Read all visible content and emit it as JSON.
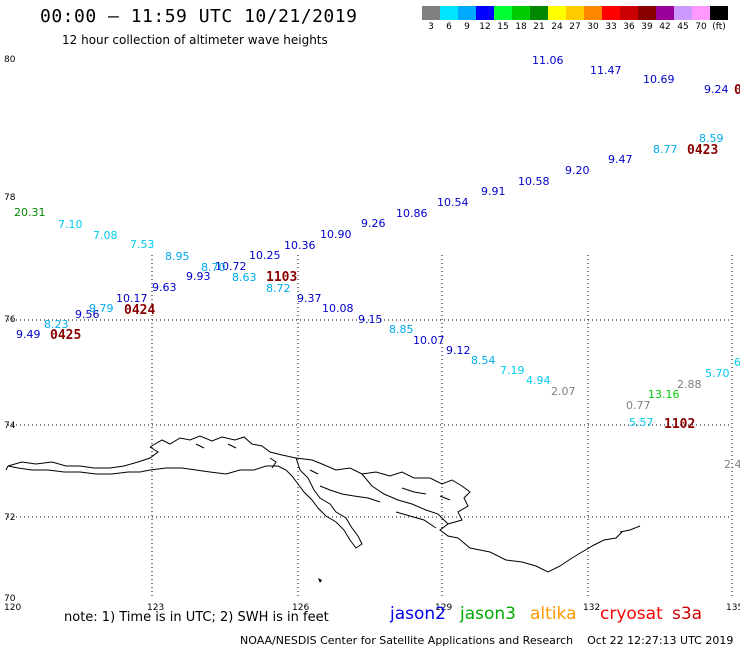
{
  "header": {
    "title": "00:00 – 11:59 UTC 10/21/2019",
    "subtitle": "12 hour collection of altimeter wave heights"
  },
  "color_scale": {
    "unit": "(ft)",
    "bins": [
      {
        "label": "3",
        "color": "#7f7f7f"
      },
      {
        "label": "6",
        "color": "#00e5ff"
      },
      {
        "label": "9",
        "color": "#00aaff"
      },
      {
        "label": "12",
        "color": "#0000ff"
      },
      {
        "label": "15",
        "color": "#00ff33"
      },
      {
        "label": "18",
        "color": "#00cc00"
      },
      {
        "label": "21",
        "color": "#008800"
      },
      {
        "label": "24",
        "color": "#ffff00"
      },
      {
        "label": "27",
        "color": "#ffcc00"
      },
      {
        "label": "30",
        "color": "#ff8800"
      },
      {
        "label": "33",
        "color": "#ff0000"
      },
      {
        "label": "36",
        "color": "#cc0000"
      },
      {
        "label": "39",
        "color": "#880000"
      },
      {
        "label": "42",
        "color": "#990099"
      },
      {
        "label": "45",
        "color": "#cc99ff"
      },
      {
        "label": "70",
        "color": "#ff99ff"
      },
      {
        "label": "",
        "color": "#000000"
      }
    ]
  },
  "axes": {
    "lon_ticks": [
      "120",
      "123",
      "126",
      "129",
      "132",
      "135"
    ],
    "lat_ticks": [
      "80",
      "78",
      "76",
      "74",
      "72",
      "70"
    ]
  },
  "observations": [
    {
      "text": "11.06",
      "lon": 128.0,
      "lat": 80.0,
      "color": "#0000cc"
    },
    {
      "text": "11.47",
      "lon": 129.2,
      "lat": 79.8,
      "color": "#0000cc"
    },
    {
      "text": "10.69",
      "lon": 130.3,
      "lat": 79.6,
      "color": "#0000cc"
    },
    {
      "text": "9.24",
      "lon": 131.4,
      "lat": 79.4,
      "color": "#0000cc"
    },
    {
      "text": "8.59",
      "lon": 131.4,
      "lat": 78.7,
      "color": "#00aaee"
    },
    {
      "text": "8.77",
      "lon": 130.4,
      "lat": 78.6,
      "color": "#00aaee"
    },
    {
      "text": "9.47",
      "lon": 129.3,
      "lat": 78.4,
      "color": "#0000cc"
    },
    {
      "text": "9.20",
      "lon": 128.3,
      "lat": 78.25,
      "color": "#0000cc"
    },
    {
      "text": "10.58",
      "lon": 127.2,
      "lat": 78.0,
      "color": "#0000cc"
    },
    {
      "text": "9.91",
      "lon": 126.2,
      "lat": 77.9,
      "color": "#0000cc"
    },
    {
      "text": "10.54",
      "lon": 125.2,
      "lat": 77.65,
      "color": "#0000cc"
    },
    {
      "text": "10.86",
      "lon": 124.2,
      "lat": 77.5,
      "color": "#0000cc"
    },
    {
      "text": "9.26",
      "lon": 123.3,
      "lat": 77.3,
      "color": "#0000cc"
    },
    {
      "text": "10.90",
      "lon": 122.3,
      "lat": 77.1,
      "color": "#0000cc"
    },
    {
      "text": "10.36",
      "lon": 121.4,
      "lat": 76.9,
      "color": "#0000cc"
    },
    {
      "text": "10.25",
      "lon": 120.6,
      "lat": 76.7,
      "color": "#0000cc"
    },
    {
      "text": "10.72",
      "lon": 120.0,
      "lat": 76.6,
      "color": "#0000cc"
    },
    {
      "text": "8.70",
      "lon": 119.8,
      "lat": 76.55,
      "color": "#00aaee"
    },
    {
      "text": "8.95",
      "lon": 118.9,
      "lat": 76.75,
      "color": "#00aaee"
    },
    {
      "text": "9.93",
      "lon": 119.3,
      "lat": 76.45,
      "color": "#0000cc"
    },
    {
      "text": "8.63",
      "lon": 120.5,
      "lat": 76.45,
      "color": "#00aaee"
    },
    {
      "text": "7.53",
      "lon": 117.9,
      "lat": 77.0,
      "color": "#00ccee"
    },
    {
      "text": "7.08",
      "lon": 117.0,
      "lat": 77.2,
      "color": "#00ccee"
    },
    {
      "text": "7.10",
      "lon": 116.2,
      "lat": 77.4,
      "color": "#00ccee"
    },
    {
      "text": "20.31",
      "lon": 115.4,
      "lat": 77.6,
      "color": "#008800"
    },
    {
      "text": "9.63",
      "lon": 118.6,
      "lat": 76.2,
      "color": "#0000cc"
    },
    {
      "text": "10.17",
      "lon": 117.9,
      "lat": 76.0,
      "color": "#0000cc"
    },
    {
      "text": "9.79",
      "lon": 117.3,
      "lat": 75.85,
      "color": "#00aaee"
    },
    {
      "text": "9.56",
      "lon": 116.9,
      "lat": 75.75,
      "color": "#0000cc"
    },
    {
      "text": "8.23",
      "lon": 116.5,
      "lat": 75.6,
      "color": "#00aaee"
    },
    {
      "text": "9.49",
      "lon": 115.7,
      "lat": 75.4,
      "color": "#0000cc"
    },
    {
      "text": "8.72",
      "lon": 121.2,
      "lat": 76.2,
      "color": "#00aaee"
    },
    {
      "text": "9.37",
      "lon": 121.6,
      "lat": 75.85,
      "color": "#0000cc"
    },
    {
      "text": "10.08",
      "lon": 122.7,
      "lat": 75.6,
      "color": "#0000cc"
    },
    {
      "text": "9.15",
      "lon": 123.9,
      "lat": 75.35,
      "color": "#0000cc"
    },
    {
      "text": "8.85",
      "lon": 124.9,
      "lat": 75.15,
      "color": "#00aaee"
    },
    {
      "text": "10.07",
      "lon": 126.0,
      "lat": 74.95,
      "color": "#0000cc"
    },
    {
      "text": "9.12",
      "lon": 127.0,
      "lat": 74.75,
      "color": "#0000cc"
    },
    {
      "text": "8.54",
      "lon": 127.9,
      "lat": 74.5,
      "color": "#00aaee"
    },
    {
      "text": "7.19",
      "lon": 128.8,
      "lat": 74.3,
      "color": "#00ccee"
    },
    {
      "text": "4.94",
      "lon": 129.8,
      "lat": 74.1,
      "color": "#00ccee"
    },
    {
      "text": "2.07",
      "lon": 130.9,
      "lat": 73.9,
      "color": "#7f7f7f"
    },
    {
      "text": "0.77",
      "lon": 133.3,
      "lat": 73.6,
      "color": "#7f7f7f"
    },
    {
      "text": "13.16",
      "lon": 134.3,
      "lat": 73.8,
      "color": "#00cc00"
    },
    {
      "text": "2.88",
      "lon": 135.1,
      "lat": 74.0,
      "color": "#7f7f7f"
    },
    {
      "text": "5.70",
      "lon": 136.3,
      "lat": 74.2,
      "color": "#00ccee"
    },
    {
      "text": "5.57",
      "lon": 133.4,
      "lat": 73.2,
      "color": "#00ccee"
    },
    {
      "text": "6",
      "lon": 137.4,
      "lat": 74.45,
      "color": "#00ccee"
    },
    {
      "text": "2.4",
      "lon": 137.4,
      "lat": 72.5,
      "color": "#7f7f7f"
    }
  ],
  "passes": [
    {
      "text": "0423",
      "lon": 132.7,
      "lat": 78.55,
      "color": "#880000"
    },
    {
      "text": "1103",
      "lon": 121.3,
      "lat": 76.35,
      "color": "#880000"
    },
    {
      "text": "0424",
      "lon": 118.2,
      "lat": 75.8,
      "color": "#880000"
    },
    {
      "text": "0425",
      "lon": 116.2,
      "lat": 75.35,
      "color": "#880000"
    },
    {
      "text": "1102",
      "lon": 135.6,
      "lat": 73.2,
      "color": "#880000"
    },
    {
      "text": "0",
      "lon": 138.6,
      "lat": 79.4,
      "color": "#880000"
    }
  ],
  "footer": {
    "note": "note: 1) Time is in UTC; 2) SWH is in feet",
    "satellites": [
      {
        "name": "jason2",
        "color": "#0000ee"
      },
      {
        "name": "jason3",
        "color": "#00aa00"
      },
      {
        "name": "altika",
        "color": "#ff9900"
      },
      {
        "name": "cryosat",
        "color": "#ff0000"
      },
      {
        "name": "s3a",
        "color": "#cc0000"
      }
    ],
    "credit": "NOAA/NESDIS Center for Satellite Applications and Research    Oct 22 12:27:13 UTC 2019"
  }
}
